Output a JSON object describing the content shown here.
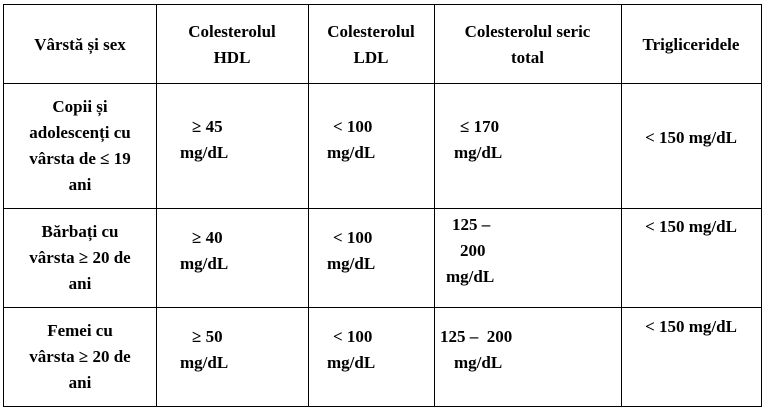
{
  "table": {
    "headers": {
      "age_sex": "Vârstă și sex",
      "hdl": [
        "Colesterolul",
        "HDL"
      ],
      "ldl": [
        "Colesterolul",
        "LDL"
      ],
      "total": [
        "Colesterolul seric",
        "total"
      ],
      "trig": "Trigliceridele"
    },
    "rows": [
      {
        "group": [
          "Copii și",
          "adolescenți cu",
          "vârsta de ≤ 19",
          "ani"
        ],
        "hdl": [
          "≥ 45",
          "mg/dL"
        ],
        "ldl": [
          "< 100",
          "mg/dL"
        ],
        "total": [
          "≤ 170",
          "mg/dL"
        ],
        "trig": "< 150 mg/dL"
      },
      {
        "group": [
          "Bărbați cu",
          "vârsta ≥ 20 de",
          "ani"
        ],
        "hdl": [
          "≥ 40",
          "mg/dL"
        ],
        "ldl": [
          "< 100",
          "mg/dL"
        ],
        "total": [
          "125 –",
          "200",
          "mg/dL"
        ],
        "trig": "< 150 mg/dL"
      },
      {
        "group": [
          "Femei cu",
          "vârsta ≥ 20 de",
          "ani"
        ],
        "hdl": [
          "≥ 50",
          "mg/dL"
        ],
        "ldl": [
          "< 100",
          "mg/dL"
        ],
        "total": [
          "125 –  200",
          "mg/dL"
        ],
        "trig": "< 150 mg/dL"
      }
    ]
  }
}
